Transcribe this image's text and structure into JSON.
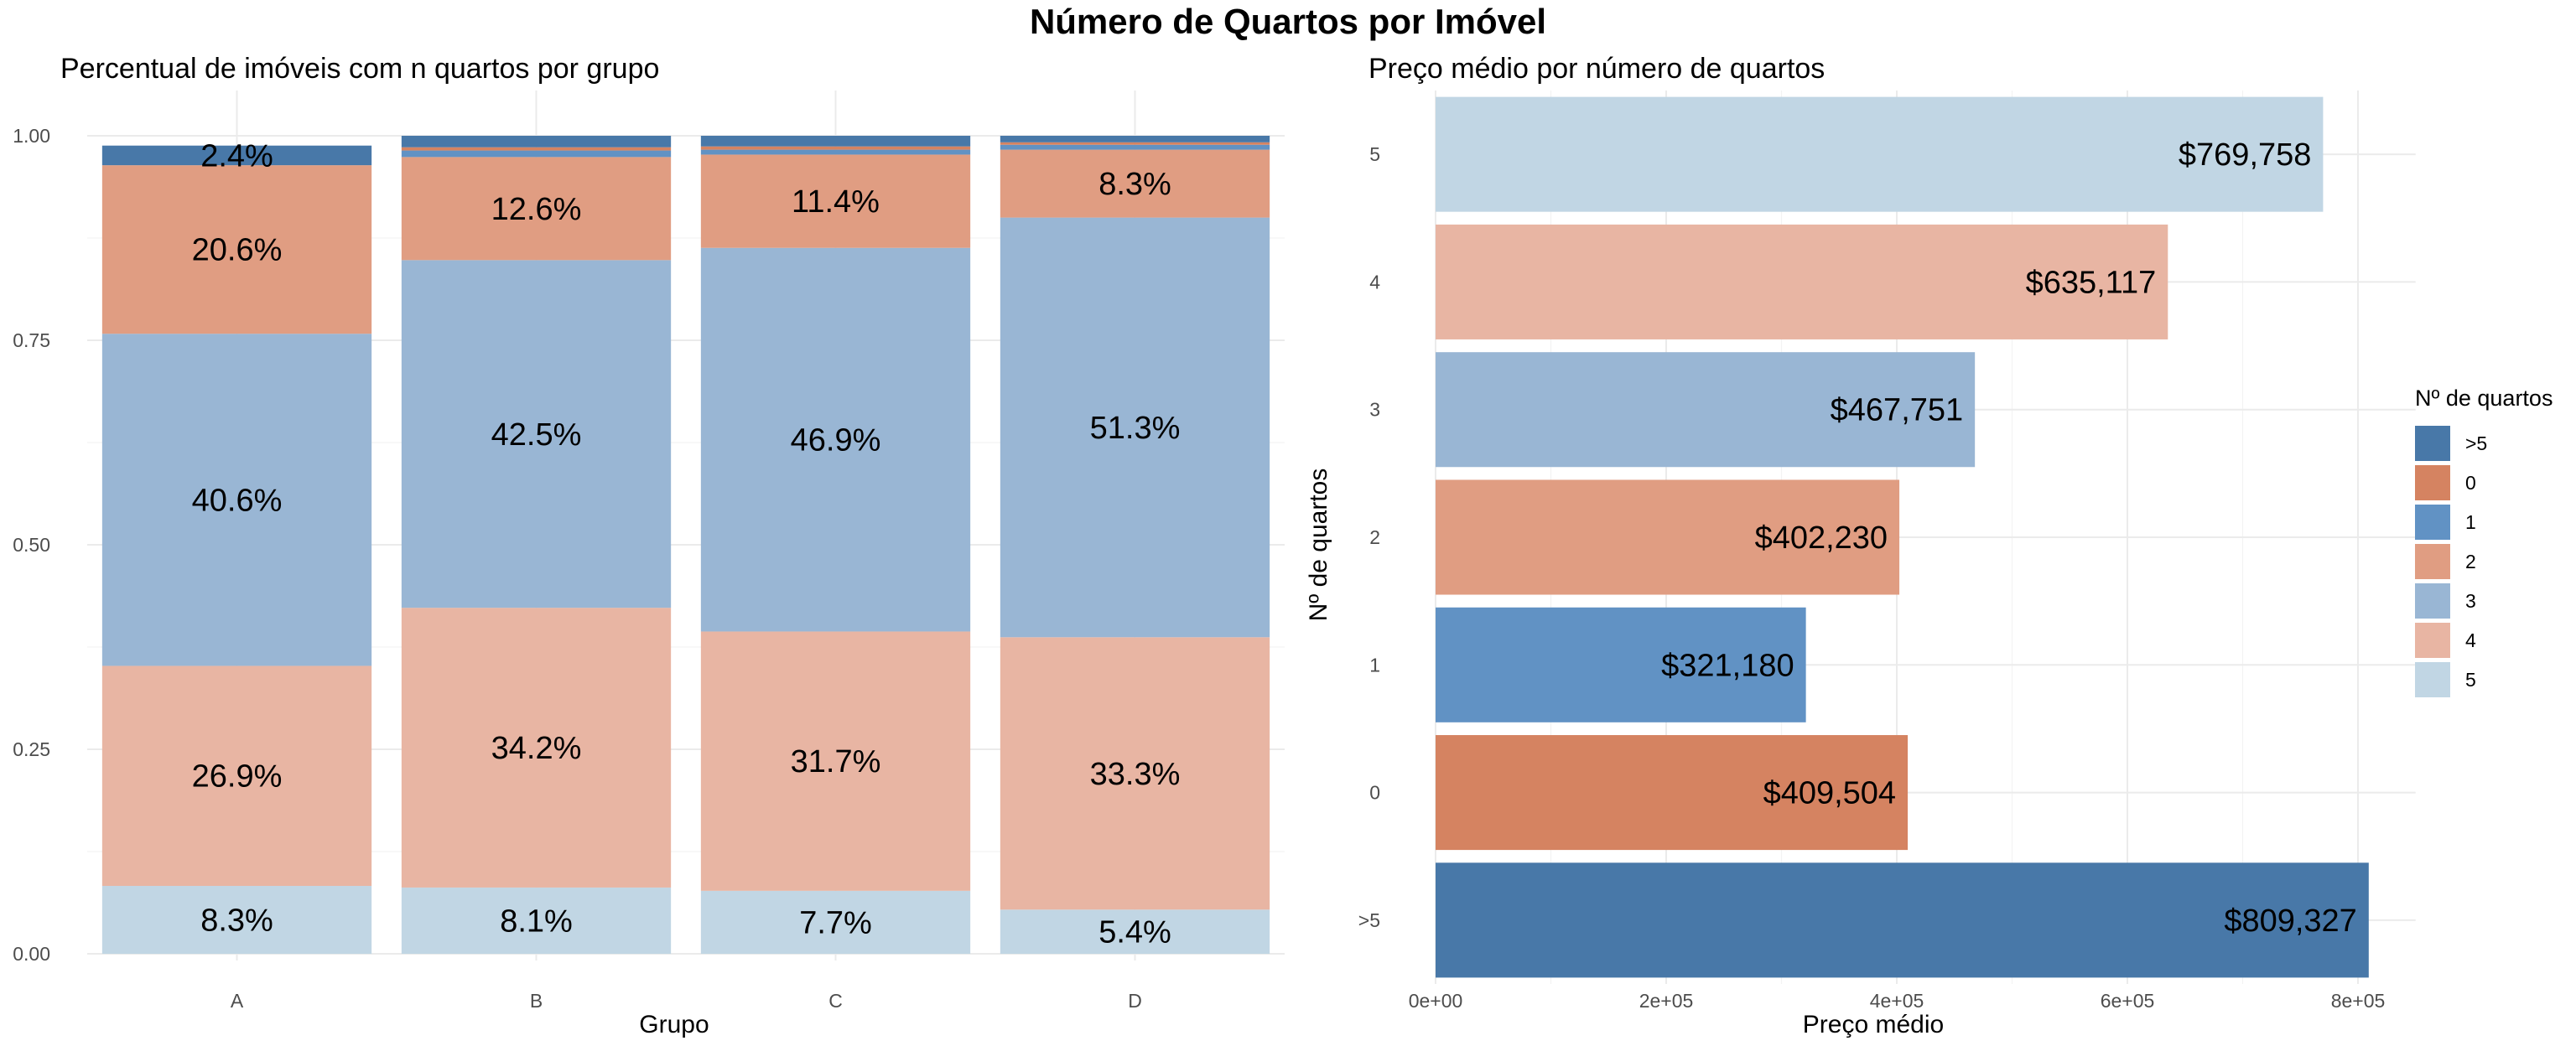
{
  "title": "Número de Quartos por Imóvel",
  "colors": {
    ">5": "#4878A8",
    "0": "#D58361",
    "1": "#6192C4",
    "2": "#E09D82",
    "3": "#99B6D4",
    "4": "#E8B5A3",
    "5": "#C1D6E4"
  },
  "legend": {
    "title": "Nº de quartos",
    "items": [
      ">5",
      "0",
      "1",
      "2",
      "3",
      "4",
      "5"
    ]
  },
  "chart_data": [
    {
      "type": "bar",
      "stacked": true,
      "title": "Percentual de imóveis com n quartos por grupo",
      "xlabel": "Grupo",
      "ylabel": "",
      "ylim": [
        0,
        1
      ],
      "yticks": [
        "0.00",
        "0.25",
        "0.50",
        "0.75",
        "1.00"
      ],
      "categories": [
        "A",
        "B",
        "C",
        "D"
      ],
      "series": [
        {
          "name": "5",
          "values": [
            0.083,
            0.081,
            0.077,
            0.054
          ],
          "labels": [
            "8.3%",
            "8.1%",
            "7.7%",
            "5.4%"
          ]
        },
        {
          "name": "4",
          "values": [
            0.269,
            0.342,
            0.317,
            0.333
          ],
          "labels": [
            "26.9%",
            "34.2%",
            "31.7%",
            "33.3%"
          ]
        },
        {
          "name": "3",
          "values": [
            0.406,
            0.425,
            0.469,
            0.513
          ],
          "labels": [
            "40.6%",
            "42.5%",
            "46.9%",
            "51.3%"
          ]
        },
        {
          "name": "2",
          "values": [
            0.206,
            0.126,
            0.114,
            0.083
          ],
          "labels": [
            "20.6%",
            "12.6%",
            "11.4%",
            "8.3%"
          ]
        },
        {
          "name": "1",
          "values": [
            0.0,
            0.008,
            0.006,
            0.006
          ],
          "labels": [
            "",
            "",
            "",
            ""
          ]
        },
        {
          "name": "0",
          "values": [
            0.0,
            0.004,
            0.004,
            0.003
          ],
          "labels": [
            "",
            "",
            "",
            ""
          ]
        },
        {
          "name": ">5",
          "values": [
            0.024,
            0.014,
            0.013,
            0.008
          ],
          "labels": [
            "2.4%",
            "",
            "",
            ""
          ]
        }
      ]
    },
    {
      "type": "bar",
      "orientation": "horizontal",
      "title": "Preço médio por número de quartos",
      "xlabel": "Preço médio",
      "ylabel": "Nº de quartos",
      "xlim": [
        0,
        850000
      ],
      "xticks": [
        0,
        200000,
        400000,
        600000,
        800000
      ],
      "xtick_labels": [
        "0e+00",
        "2e+05",
        "4e+05",
        "6e+05",
        "8e+05"
      ],
      "categories": [
        ">5",
        "0",
        "1",
        "2",
        "3",
        "4",
        "5"
      ],
      "values": [
        809327,
        409504,
        321180,
        402230,
        467751,
        635117,
        769758
      ],
      "labels": [
        "$809,327",
        "$409,504",
        "$321,180",
        "$402,230",
        "$467,751",
        "$635,117",
        "$769,758"
      ]
    }
  ]
}
